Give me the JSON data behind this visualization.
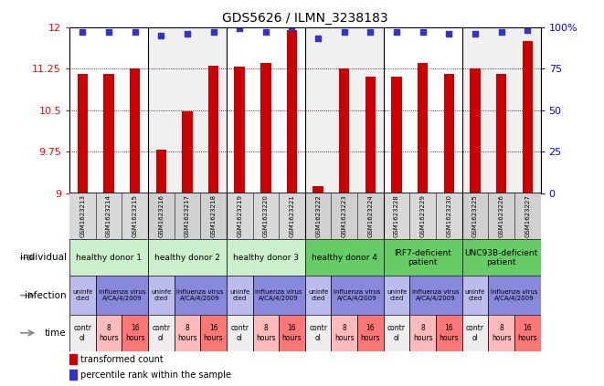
{
  "title": "GDS5626 / ILMN_3238183",
  "samples": [
    "GSM1623213",
    "GSM1623214",
    "GSM1623215",
    "GSM1623216",
    "GSM1623217",
    "GSM1623218",
    "GSM1623219",
    "GSM1623220",
    "GSM1623221",
    "GSM1623222",
    "GSM1623223",
    "GSM1623224",
    "GSM1623228",
    "GSM1623229",
    "GSM1623230",
    "GSM1623225",
    "GSM1623226",
    "GSM1623227"
  ],
  "red_values": [
    11.15,
    11.15,
    11.25,
    9.78,
    10.47,
    11.3,
    11.28,
    11.35,
    11.95,
    9.12,
    11.25,
    11.1,
    11.1,
    11.35,
    11.15,
    11.25,
    11.15,
    11.75
  ],
  "blue_values": [
    97,
    97,
    97,
    95,
    96,
    97,
    99,
    97,
    100,
    93,
    97,
    97,
    97,
    97,
    96,
    96,
    97,
    98
  ],
  "ylim_left": [
    9,
    12
  ],
  "ylim_right": [
    0,
    100
  ],
  "yticks_left": [
    9,
    9.75,
    10.5,
    11.25,
    12
  ],
  "yticks_right": [
    0,
    25,
    50,
    75,
    100
  ],
  "bar_color": "#cc0000",
  "dot_color": "#3333cc",
  "bg_color": "#ffffff",
  "chart_bg": "#ffffff",
  "col_bg_alt": "#e8e8e8",
  "individual_groups": [
    {
      "label": "healthy donor 1",
      "start": 0,
      "end": 3,
      "color": "#ccf0cc"
    },
    {
      "label": "healthy donor 2",
      "start": 3,
      "end": 6,
      "color": "#ccf0cc"
    },
    {
      "label": "healthy donor 3",
      "start": 6,
      "end": 9,
      "color": "#ccf0cc"
    },
    {
      "label": "healthy donor 4",
      "start": 9,
      "end": 12,
      "color": "#66cc66"
    },
    {
      "label": "IRF7-deficient\npatient",
      "start": 12,
      "end": 15,
      "color": "#66cc66"
    },
    {
      "label": "UNC93B-deficient\npatient",
      "start": 15,
      "end": 18,
      "color": "#66cc66"
    }
  ],
  "infection_groups": [
    {
      "label": "uninfe\ncted",
      "start": 0,
      "end": 1,
      "color": "#bbbbee"
    },
    {
      "label": "influenza virus\nA/CA/4/2009",
      "start": 1,
      "end": 3,
      "color": "#8888dd"
    },
    {
      "label": "uninfe\ncted",
      "start": 3,
      "end": 4,
      "color": "#bbbbee"
    },
    {
      "label": "influenza virus\nA/CA/4/2009",
      "start": 4,
      "end": 6,
      "color": "#8888dd"
    },
    {
      "label": "uninfe\ncted",
      "start": 6,
      "end": 7,
      "color": "#bbbbee"
    },
    {
      "label": "influenza virus\nA/CA/4/2009",
      "start": 7,
      "end": 9,
      "color": "#8888dd"
    },
    {
      "label": "uninfe\ncted",
      "start": 9,
      "end": 10,
      "color": "#bbbbee"
    },
    {
      "label": "influenza virus\nA/CA/4/2009",
      "start": 10,
      "end": 12,
      "color": "#8888dd"
    },
    {
      "label": "uninfe\ncted",
      "start": 12,
      "end": 13,
      "color": "#bbbbee"
    },
    {
      "label": "influenza virus\nA/CA/4/2009",
      "start": 13,
      "end": 15,
      "color": "#8888dd"
    },
    {
      "label": "uninfe\ncted",
      "start": 15,
      "end": 16,
      "color": "#bbbbee"
    },
    {
      "label": "influenza virus\nA/CA/4/2009",
      "start": 16,
      "end": 18,
      "color": "#8888dd"
    }
  ],
  "time_groups": [
    {
      "label": "contr\nol",
      "start": 0,
      "end": 1,
      "color": "#eeeeee"
    },
    {
      "label": "8\nhours",
      "start": 1,
      "end": 2,
      "color": "#ffbbbb"
    },
    {
      "label": "16\nhours",
      "start": 2,
      "end": 3,
      "color": "#ff7777"
    },
    {
      "label": "contr\nol",
      "start": 3,
      "end": 4,
      "color": "#eeeeee"
    },
    {
      "label": "8\nhours",
      "start": 4,
      "end": 5,
      "color": "#ffbbbb"
    },
    {
      "label": "16\nhours",
      "start": 5,
      "end": 6,
      "color": "#ff7777"
    },
    {
      "label": "contr\nol",
      "start": 6,
      "end": 7,
      "color": "#eeeeee"
    },
    {
      "label": "8\nhours",
      "start": 7,
      "end": 8,
      "color": "#ffbbbb"
    },
    {
      "label": "16\nhours",
      "start": 8,
      "end": 9,
      "color": "#ff7777"
    },
    {
      "label": "contr\nol",
      "start": 9,
      "end": 10,
      "color": "#eeeeee"
    },
    {
      "label": "8\nhours",
      "start": 10,
      "end": 11,
      "color": "#ffbbbb"
    },
    {
      "label": "16\nhours",
      "start": 11,
      "end": 12,
      "color": "#ff7777"
    },
    {
      "label": "contr\nol",
      "start": 12,
      "end": 13,
      "color": "#eeeeee"
    },
    {
      "label": "8\nhours",
      "start": 13,
      "end": 14,
      "color": "#ffbbbb"
    },
    {
      "label": "16\nhours",
      "start": 14,
      "end": 15,
      "color": "#ff7777"
    },
    {
      "label": "contr\nol",
      "start": 15,
      "end": 16,
      "color": "#eeeeee"
    },
    {
      "label": "8\nhours",
      "start": 16,
      "end": 17,
      "color": "#ffbbbb"
    },
    {
      "label": "16\nhours",
      "start": 17,
      "end": 18,
      "color": "#ff7777"
    }
  ],
  "row_labels": [
    "individual",
    "infection",
    "time"
  ],
  "legend_red": "transformed count",
  "legend_blue": "percentile rank within the sample",
  "group_boundaries": [
    3,
    6,
    9,
    12,
    15
  ]
}
